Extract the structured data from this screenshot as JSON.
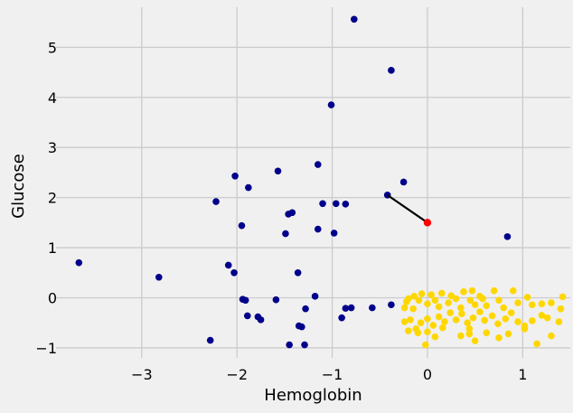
{
  "chart_data": {
    "type": "scatter",
    "xlabel": "Hemoglobin",
    "ylabel": "Glucose",
    "xlim": [
      -3.9,
      1.5
    ],
    "ylim": [
      -1.2,
      5.8
    ],
    "xticks": [
      -3,
      -2,
      -1,
      0,
      1
    ],
    "yticks": [
      -1,
      0,
      1,
      2,
      3,
      4,
      5
    ],
    "grid": true,
    "colors": {
      "background": "#f0f0f0",
      "class_a": "#00008b",
      "class_b": "#ffd700",
      "highlight": "#ff0000",
      "line": "#000000"
    },
    "series": [
      {
        "color": "#00008b",
        "points": [
          [
            -0.77,
            5.56
          ],
          [
            -0.38,
            4.54
          ],
          [
            -1.01,
            3.85
          ],
          [
            -1.15,
            2.66
          ],
          [
            -1.57,
            2.53
          ],
          [
            -2.02,
            2.43
          ],
          [
            -0.25,
            2.31
          ],
          [
            -1.88,
            2.2
          ],
          [
            -0.42,
            2.05
          ],
          [
            -2.22,
            1.92
          ],
          [
            -1.1,
            1.88
          ],
          [
            -0.96,
            1.88
          ],
          [
            -0.86,
            1.87
          ],
          [
            -1.42,
            1.7
          ],
          [
            -1.46,
            1.67
          ],
          [
            -1.95,
            1.44
          ],
          [
            -1.15,
            1.37
          ],
          [
            -0.98,
            1.29
          ],
          [
            -1.49,
            1.28
          ],
          [
            0.84,
            1.22
          ],
          [
            -3.66,
            0.7
          ],
          [
            -2.09,
            0.65
          ],
          [
            -2.82,
            0.41
          ],
          [
            -2.03,
            0.5
          ],
          [
            -1.36,
            0.5
          ],
          [
            -1.18,
            0.03
          ],
          [
            -1.94,
            -0.03
          ],
          [
            -1.91,
            -0.05
          ],
          [
            -1.59,
            -0.04
          ],
          [
            -0.38,
            -0.14
          ],
          [
            -0.8,
            -0.2
          ],
          [
            -0.86,
            -0.21
          ],
          [
            -0.58,
            -0.2
          ],
          [
            -1.28,
            -0.22
          ],
          [
            -1.89,
            -0.36
          ],
          [
            -1.78,
            -0.38
          ],
          [
            -1.75,
            -0.44
          ],
          [
            -0.9,
            -0.4
          ],
          [
            -1.35,
            -0.56
          ],
          [
            -1.32,
            -0.58
          ],
          [
            -2.28,
            -0.85
          ],
          [
            -1.45,
            -0.94
          ],
          [
            -1.29,
            -0.94
          ]
        ]
      },
      {
        "color": "#ffd700",
        "points": [
          [
            -0.24,
            -0.2
          ],
          [
            -0.2,
            -0.02
          ],
          [
            -0.14,
            0.03
          ],
          [
            -0.06,
            0.08
          ],
          [
            0.04,
            0.06
          ],
          [
            0.15,
            0.09
          ],
          [
            0.25,
            0.04
          ],
          [
            0.38,
            0.12
          ],
          [
            0.47,
            0.14
          ],
          [
            0.55,
            0.03
          ],
          [
            0.7,
            0.14
          ],
          [
            0.9,
            0.14
          ],
          [
            1.05,
            0.01
          ],
          [
            1.42,
            0.02
          ],
          [
            -0.22,
            -0.08
          ],
          [
            -0.15,
            -0.22
          ],
          [
            -0.09,
            -0.05
          ],
          [
            0.0,
            -0.12
          ],
          [
            0.08,
            -0.05
          ],
          [
            0.12,
            -0.18
          ],
          [
            0.22,
            -0.1
          ],
          [
            0.3,
            -0.02
          ],
          [
            0.35,
            -0.2
          ],
          [
            0.45,
            -0.05
          ],
          [
            0.5,
            -0.14
          ],
          [
            0.58,
            -0.02
          ],
          [
            0.62,
            -0.16
          ],
          [
            0.75,
            -0.05
          ],
          [
            0.8,
            -0.2
          ],
          [
            0.95,
            -0.1
          ],
          [
            1.1,
            -0.14
          ],
          [
            1.2,
            -0.12
          ],
          [
            1.3,
            -0.1
          ],
          [
            1.4,
            -0.22
          ],
          [
            -0.24,
            -0.48
          ],
          [
            -0.18,
            -0.44
          ],
          [
            -0.12,
            -0.62
          ],
          [
            -0.07,
            -0.5
          ],
          [
            0.0,
            -0.42
          ],
          [
            0.06,
            -0.55
          ],
          [
            0.12,
            -0.38
          ],
          [
            0.18,
            -0.48
          ],
          [
            0.24,
            -0.3
          ],
          [
            0.3,
            -0.44
          ],
          [
            0.36,
            -0.32
          ],
          [
            0.42,
            -0.5
          ],
          [
            0.48,
            -0.4
          ],
          [
            0.55,
            -0.28
          ],
          [
            0.6,
            -0.45
          ],
          [
            0.68,
            -0.36
          ],
          [
            0.74,
            -0.52
          ],
          [
            0.82,
            -0.42
          ],
          [
            0.88,
            -0.3
          ],
          [
            0.95,
            -0.48
          ],
          [
            1.02,
            -0.56
          ],
          [
            1.1,
            -0.46
          ],
          [
            1.2,
            -0.35
          ],
          [
            1.26,
            -0.4
          ],
          [
            1.38,
            -0.48
          ],
          [
            -0.2,
            -0.66
          ],
          [
            -0.1,
            -0.7
          ],
          [
            0.0,
            -0.68
          ],
          [
            0.08,
            -0.78
          ],
          [
            0.16,
            -0.6
          ],
          [
            0.35,
            -0.76
          ],
          [
            0.44,
            -0.72
          ],
          [
            0.5,
            -0.86
          ],
          [
            0.62,
            -0.7
          ],
          [
            0.75,
            -0.8
          ],
          [
            0.85,
            -0.72
          ],
          [
            1.02,
            -0.62
          ],
          [
            1.15,
            -0.92
          ],
          [
            1.3,
            -0.76
          ],
          [
            -0.02,
            -0.94
          ],
          [
            0.44,
            -0.62
          ]
        ]
      }
    ],
    "highlight_point": [
      0.0,
      1.5
    ],
    "line": [
      [
        -0.42,
        2.05
      ],
      [
        0.0,
        1.5
      ]
    ]
  }
}
